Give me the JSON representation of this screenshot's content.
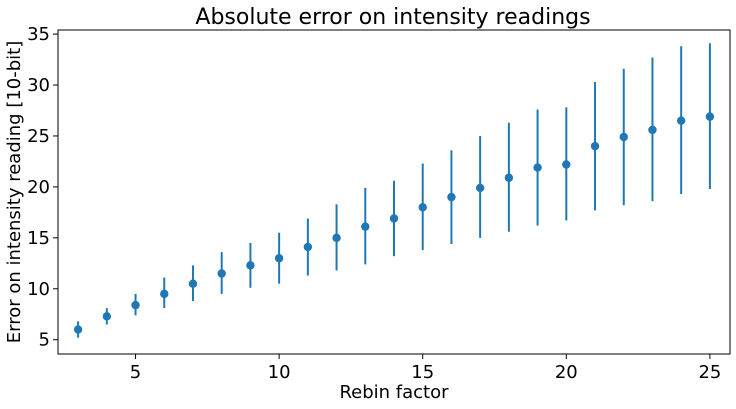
{
  "chart_data": {
    "type": "scatter",
    "title": "Absolute error on intensity readings",
    "xlabel": "Rebin factor",
    "ylabel": "Error on intensity reading [10-bit]",
    "xlim": [
      2.3,
      25.7
    ],
    "ylim": [
      3.6,
      35.4
    ],
    "xticks": [
      5,
      10,
      15,
      20,
      25
    ],
    "yticks": [
      5,
      10,
      15,
      20,
      25,
      30,
      35
    ],
    "grid": false,
    "color": "#1f77b4",
    "series": [
      {
        "x": [
          3,
          4,
          5,
          6,
          7,
          8,
          9,
          10,
          11,
          12,
          13,
          14,
          15,
          16,
          17,
          18,
          19,
          20,
          21,
          22,
          23,
          24,
          25
        ],
        "y": [
          6.0,
          7.3,
          8.4,
          9.5,
          10.5,
          11.5,
          12.3,
          13.0,
          14.1,
          15.0,
          16.1,
          16.9,
          18.0,
          19.0,
          19.9,
          20.9,
          21.9,
          22.2,
          24.0,
          24.9,
          25.6,
          26.5,
          26.9
        ],
        "err_low": [
          5.2,
          6.5,
          7.4,
          8.1,
          8.8,
          9.5,
          10.1,
          10.5,
          11.3,
          11.8,
          12.4,
          13.2,
          13.8,
          14.4,
          15.0,
          15.6,
          16.2,
          16.7,
          17.7,
          18.2,
          18.6,
          19.3,
          19.8
        ],
        "err_high": [
          6.8,
          8.1,
          9.5,
          11.1,
          12.3,
          13.6,
          14.5,
          15.5,
          16.9,
          18.3,
          19.9,
          20.6,
          22.3,
          23.6,
          25.0,
          26.3,
          27.6,
          27.8,
          30.3,
          31.6,
          32.7,
          33.8,
          34.1
        ]
      }
    ]
  }
}
